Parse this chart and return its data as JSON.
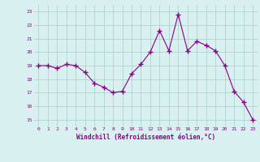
{
  "x": [
    0,
    1,
    2,
    3,
    4,
    5,
    6,
    7,
    8,
    9,
    10,
    11,
    12,
    13,
    14,
    15,
    16,
    17,
    18,
    19,
    20,
    21,
    22,
    23
  ],
  "y": [
    19.0,
    19.0,
    18.8,
    19.1,
    19.0,
    18.5,
    17.7,
    17.4,
    17.0,
    17.1,
    18.4,
    19.1,
    20.0,
    21.6,
    20.1,
    22.8,
    20.1,
    20.8,
    20.5,
    20.1,
    19.0,
    17.1,
    16.3,
    15.0
  ],
  "line_color": "#880088",
  "marker_color": "#880088",
  "bg_color": "#d8f0f0",
  "grid_color": "#aacccc",
  "xlabel": "Windchill (Refroidissement éolien,°C)",
  "xlabel_color": "#880088",
  "tick_color": "#880088",
  "ylim": [
    14.5,
    23.5
  ],
  "xlim": [
    -0.5,
    23.5
  ],
  "yticks": [
    15,
    16,
    17,
    18,
    19,
    20,
    21,
    22,
    23
  ],
  "xticks": [
    0,
    1,
    2,
    3,
    4,
    5,
    6,
    7,
    8,
    9,
    10,
    11,
    12,
    13,
    14,
    15,
    16,
    17,
    18,
    19,
    20,
    21,
    22,
    23
  ]
}
